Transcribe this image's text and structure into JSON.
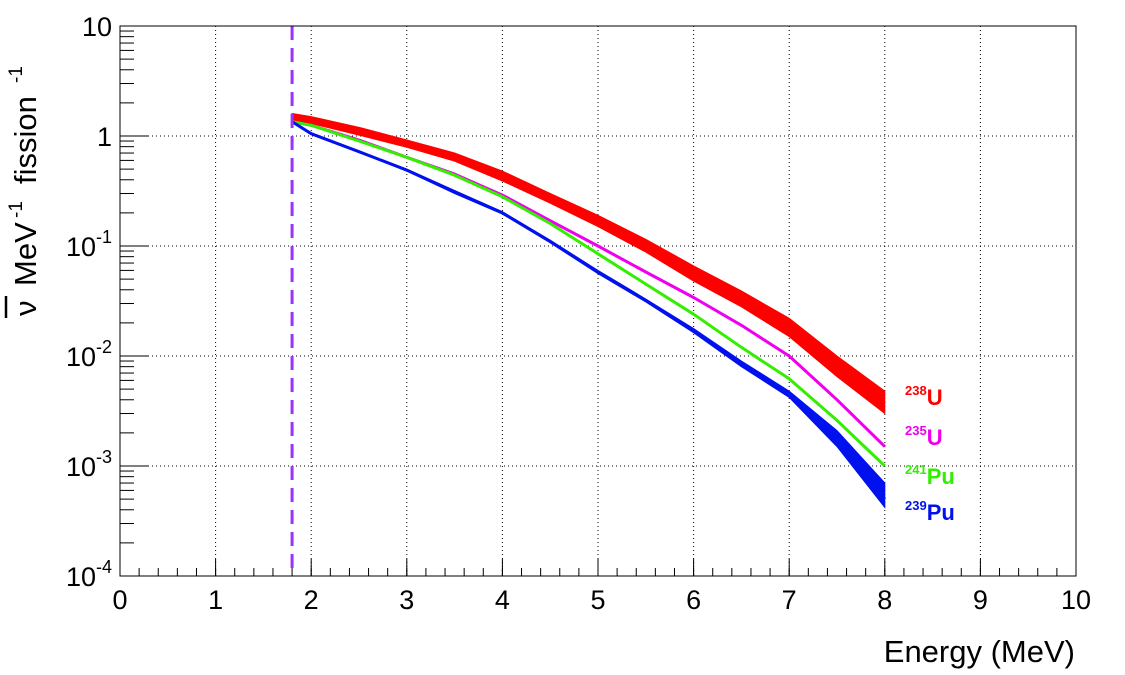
{
  "chart_data": {
    "type": "line",
    "xlabel": "Energy  (MeV)",
    "ylabel": {
      "nu_bar": "ν",
      "mev": "MeV",
      "mev_exp": "-1",
      "fission": "fission",
      "fission_exp": "-1"
    },
    "xlim": [
      0,
      10
    ],
    "ylim": [
      0.0001,
      10
    ],
    "y_scale": "log",
    "grid": true,
    "x_ticks": [
      "0",
      "1",
      "2",
      "3",
      "4",
      "5",
      "6",
      "7",
      "8",
      "9",
      "10"
    ],
    "y_ticks": [
      {
        "value": 10,
        "base": "10",
        "exp": ""
      },
      {
        "value": 1,
        "base": "1",
        "exp": ""
      },
      {
        "value": 0.1,
        "base": "10",
        "exp": "-1"
      },
      {
        "value": 0.01,
        "base": "10",
        "exp": "-2"
      },
      {
        "value": 0.001,
        "base": "10",
        "exp": "-3"
      },
      {
        "value": 0.0001,
        "base": "10",
        "exp": "-4"
      }
    ],
    "threshold": {
      "x": 1.8,
      "color": "#9933ff",
      "style": "dashed"
    },
    "series": [
      {
        "name": "U",
        "isotope_mass": "238",
        "color": "#ff0000",
        "x": [
          1.8,
          2.0,
          2.5,
          3.0,
          3.5,
          4.0,
          4.5,
          5.0,
          5.5,
          6.0,
          6.5,
          7.0,
          7.5,
          8.0
        ],
        "y": [
          1.5,
          1.4,
          1.1,
          0.85,
          0.64,
          0.43,
          0.27,
          0.17,
          0.1,
          0.056,
          0.033,
          0.018,
          0.008,
          0.0037
        ],
        "band": [
          1.6,
          1.5,
          1.2,
          0.92,
          0.7,
          0.48,
          0.3,
          0.19,
          0.115,
          0.066,
          0.039,
          0.022,
          0.01,
          0.0048
        ],
        "band_low": [
          1.4,
          1.3,
          1.02,
          0.79,
          0.59,
          0.39,
          0.245,
          0.15,
          0.088,
          0.048,
          0.028,
          0.015,
          0.0065,
          0.003
        ]
      },
      {
        "name": "U",
        "isotope_mass": "235",
        "color": "#ee00ee",
        "x": [
          1.8,
          2.0,
          2.5,
          3.0,
          3.5,
          4.0,
          4.5,
          5.0,
          5.5,
          6.0,
          6.5,
          7.0,
          7.5,
          8.0
        ],
        "y": [
          1.35,
          1.25,
          0.92,
          0.64,
          0.45,
          0.29,
          0.17,
          0.1,
          0.058,
          0.034,
          0.019,
          0.01,
          0.004,
          0.0015
        ]
      },
      {
        "name": "Pu",
        "isotope_mass": "241",
        "color": "#33ee00",
        "x": [
          1.8,
          2.0,
          2.5,
          3.0,
          3.5,
          4.0,
          4.5,
          5.0,
          5.5,
          6.0,
          6.5,
          7.0,
          7.5,
          8.0
        ],
        "y": [
          1.35,
          1.25,
          0.9,
          0.64,
          0.44,
          0.28,
          0.16,
          0.085,
          0.045,
          0.024,
          0.012,
          0.0062,
          0.0026,
          0.001
        ]
      },
      {
        "name": "Pu",
        "isotope_mass": "239",
        "color": "#0011ee",
        "x": [
          1.8,
          2.0,
          2.5,
          3.0,
          3.5,
          4.0,
          4.5,
          5.0,
          5.5,
          6.0,
          6.5,
          7.0,
          7.5,
          8.0
        ],
        "y": [
          1.35,
          1.05,
          0.72,
          0.49,
          0.31,
          0.2,
          0.11,
          0.058,
          0.032,
          0.017,
          0.0085,
          0.0045,
          0.0018,
          0.0005
        ],
        "band": [
          1.35,
          1.06,
          0.73,
          0.5,
          0.32,
          0.205,
          0.113,
          0.06,
          0.033,
          0.0178,
          0.009,
          0.0048,
          0.0021,
          0.0007
        ],
        "band_low": [
          1.33,
          1.04,
          0.71,
          0.48,
          0.3,
          0.195,
          0.107,
          0.056,
          0.031,
          0.0163,
          0.008,
          0.0042,
          0.0015,
          0.00042
        ]
      }
    ]
  }
}
